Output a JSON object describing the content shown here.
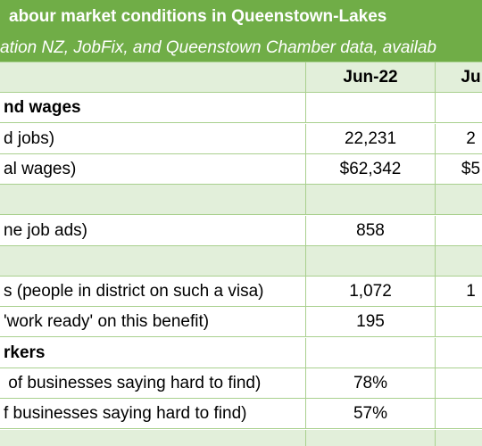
{
  "header": {
    "title": "abour market conditions in Queenstown-Lakes",
    "subtitle": "ation NZ, JobFix, and Queenstown Chamber data, availab"
  },
  "table": {
    "columns": [
      "Jun-22",
      "Ju"
    ],
    "rows": [
      {
        "cells": [
          "nd wages"
        ],
        "bold": true
      },
      {
        "cells": [
          "d jobs)",
          "22,231",
          "2"
        ]
      },
      {
        "cells": [
          "al wages)",
          "$62,342",
          "$5"
        ]
      },
      {
        "cells": []
      },
      {
        "cells": [
          "ne job ads)",
          "858"
        ]
      },
      {
        "cells": []
      },
      {
        "cells": [
          "s (people in district on such a visa)",
          "1,072",
          "1"
        ]
      },
      {
        "cells": [
          "'work ready' on this benefit)",
          "195"
        ]
      },
      {
        "cells": [
          "rkers"
        ],
        "bold": true
      },
      {
        "cells": [
          " of businesses saying hard to find)",
          "78%"
        ]
      },
      {
        "cells": [
          "f businesses saying hard to find)",
          "57%"
        ]
      },
      {
        "cells": []
      }
    ]
  }
}
